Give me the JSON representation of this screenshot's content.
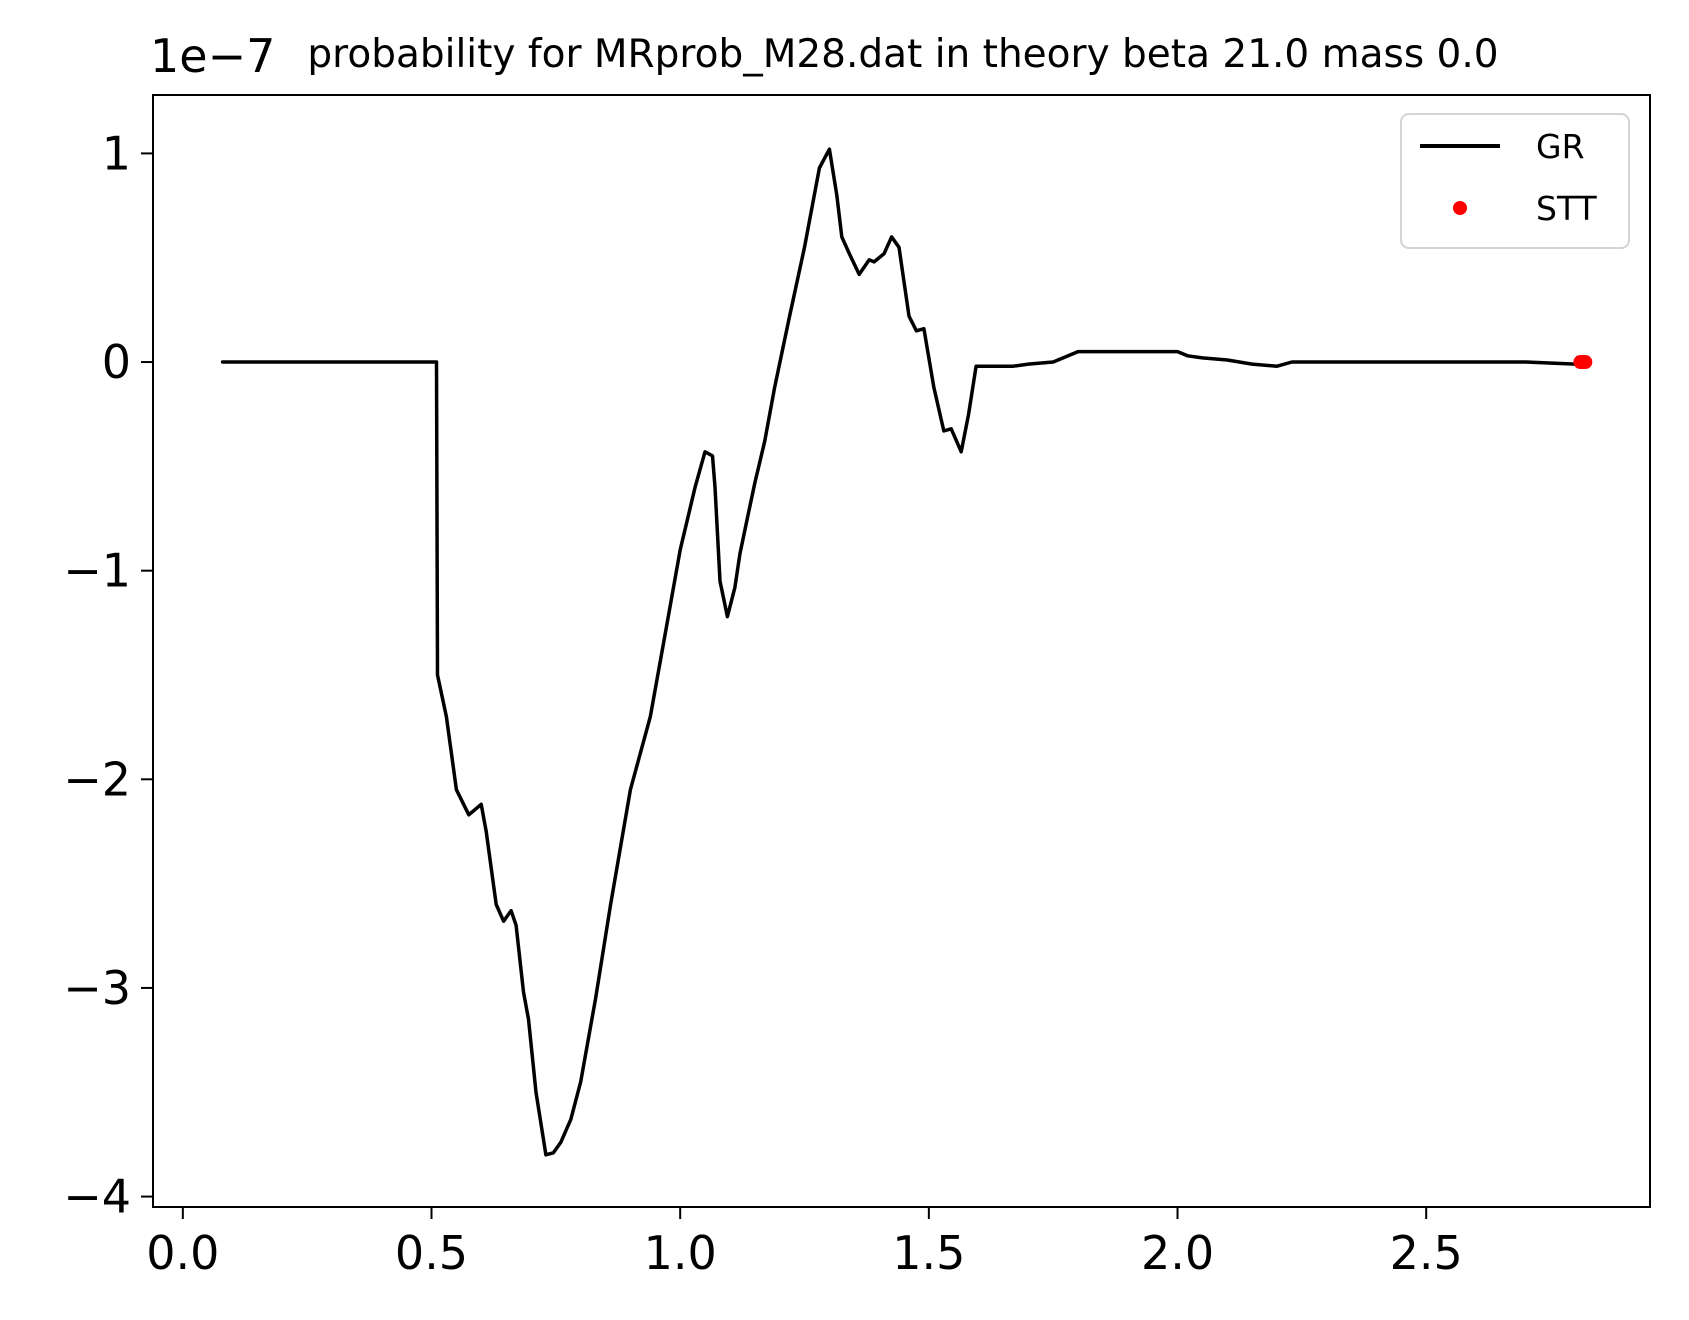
{
  "chart_data": {
    "type": "line",
    "title": "probability for MRprob_M28.dat in theory beta 21.0 mass 0.0",
    "xlabel": "",
    "ylabel": "",
    "y_offset_label": "1e−7",
    "xlim": [
      -0.06,
      2.95
    ],
    "ylim": [
      -4.05,
      1.28
    ],
    "x_ticks": [
      0.0,
      0.5,
      1.0,
      1.5,
      2.0,
      2.5
    ],
    "x_tick_labels": [
      "0.0",
      "0.5",
      "1.0",
      "1.5",
      "2.0",
      "2.5"
    ],
    "y_ticks": [
      1,
      0,
      -1,
      -2,
      -3,
      -4
    ],
    "y_tick_labels": [
      "1",
      "0",
      "−1",
      "−2",
      "−3",
      "−4"
    ],
    "grid": false,
    "legend_position": "top-right",
    "legend": [
      {
        "name": "GR",
        "marker": "line",
        "color": "#000000"
      },
      {
        "name": "STT",
        "marker": "dot",
        "color": "#ff0000"
      }
    ],
    "series": [
      {
        "name": "GR",
        "style": "line",
        "color": "#000000",
        "x": [
          0.08,
          0.2,
          0.3,
          0.4,
          0.51,
          0.512,
          0.53,
          0.55,
          0.575,
          0.59,
          0.6,
          0.61,
          0.63,
          0.645,
          0.66,
          0.67,
          0.685,
          0.695,
          0.71,
          0.73,
          0.745,
          0.76,
          0.78,
          0.8,
          0.83,
          0.86,
          0.9,
          0.94,
          0.97,
          1.0,
          1.03,
          1.05,
          1.065,
          1.07,
          1.08,
          1.095,
          1.11,
          1.12,
          1.135,
          1.15,
          1.17,
          1.19,
          1.22,
          1.25,
          1.28,
          1.3,
          1.315,
          1.325,
          1.34,
          1.36,
          1.38,
          1.39,
          1.41,
          1.425,
          1.44,
          1.46,
          1.475,
          1.49,
          1.51,
          1.53,
          1.545,
          1.565,
          1.58,
          1.595,
          1.605,
          1.615,
          1.63,
          1.65,
          1.67,
          1.7,
          1.75,
          1.8,
          1.85,
          1.87,
          1.9,
          1.95,
          2.0,
          2.02,
          2.05,
          2.1,
          2.15,
          2.2,
          2.23,
          2.3,
          2.4,
          2.5,
          2.6,
          2.7,
          2.8
        ],
        "y": [
          0.0,
          0.0,
          0.0,
          0.0,
          0.0,
          -1.5,
          -1.7,
          -2.05,
          -2.17,
          -2.14,
          -2.12,
          -2.25,
          -2.6,
          -2.68,
          -2.63,
          -2.7,
          -3.02,
          -3.15,
          -3.5,
          -3.8,
          -3.79,
          -3.74,
          -3.63,
          -3.45,
          -3.05,
          -2.6,
          -2.05,
          -1.7,
          -1.3,
          -0.9,
          -0.6,
          -0.43,
          -0.45,
          -0.6,
          -1.05,
          -1.22,
          -1.08,
          -0.92,
          -0.75,
          -0.58,
          -0.38,
          -0.12,
          0.22,
          0.55,
          0.93,
          1.02,
          0.8,
          0.6,
          0.52,
          0.42,
          0.49,
          0.48,
          0.52,
          0.6,
          0.55,
          0.22,
          0.15,
          0.16,
          -0.12,
          -0.33,
          -0.32,
          -0.43,
          -0.25,
          -0.02,
          -0.02,
          -0.02,
          -0.02,
          -0.02,
          -0.02,
          -0.01,
          0.0,
          0.05,
          0.05,
          0.05,
          0.05,
          0.05,
          0.05,
          0.03,
          0.02,
          0.01,
          -0.01,
          -0.02,
          0.0,
          0.0,
          0.0,
          0.0,
          0.0,
          0.0,
          -0.01
        ]
      },
      {
        "name": "STT",
        "style": "dot",
        "color": "#ff0000",
        "x": [
          2.81,
          2.815,
          2.82
        ],
        "y": [
          0.0,
          0.0,
          0.0
        ]
      }
    ]
  }
}
